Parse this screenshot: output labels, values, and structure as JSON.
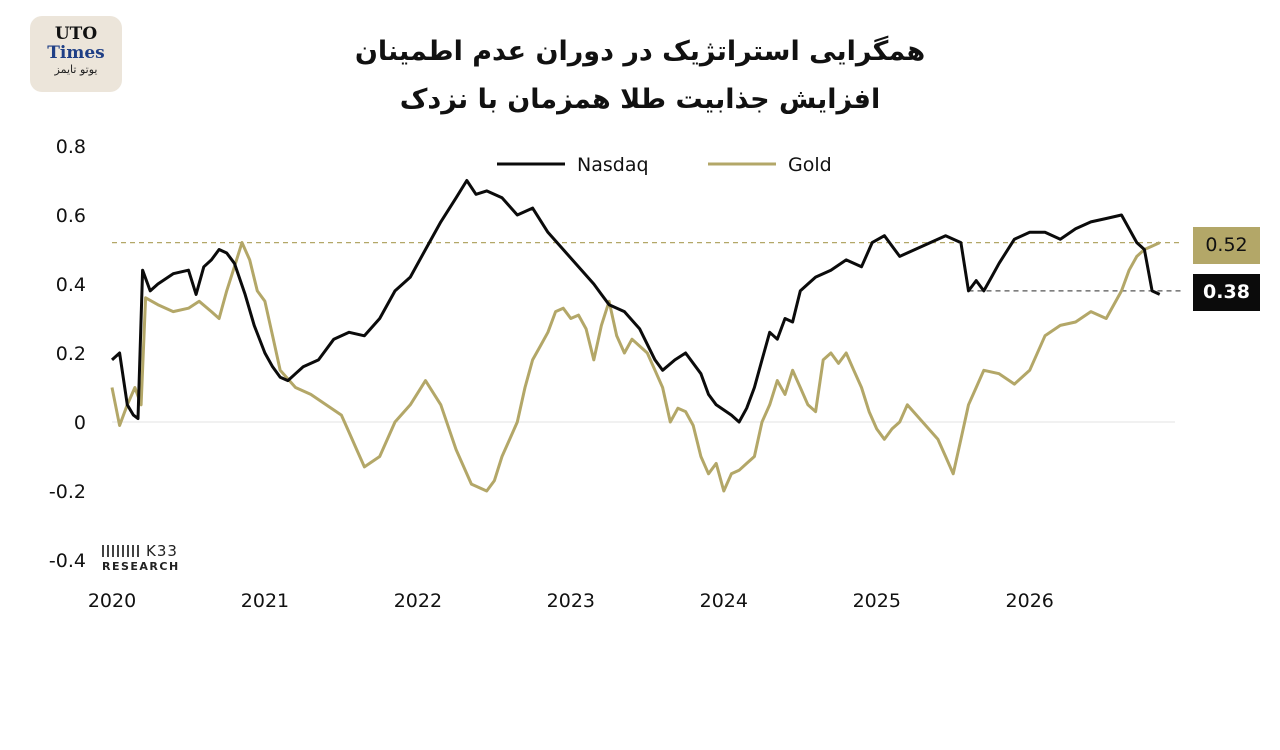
{
  "logo": {
    "line1": "UTO",
    "line2": "Times",
    "line3": "یوتو تایمز"
  },
  "title": {
    "line1": "همگرایی استراتژیک در دوران عدم اطمینان",
    "line2": "افزایش جذابیت طلا همزمان با نزدک"
  },
  "watermark": {
    "brand": "K33",
    "sub": "RESEARCH"
  },
  "colors": {
    "nasdaq": "#0b0b0b",
    "gold": "#b3a768",
    "badge_gold_bg": "#b3a768",
    "badge_nasdaq_bg": "#0b0b0b",
    "zero_line": "#e3e3e3"
  },
  "badges": {
    "gold": "0.52",
    "nasdaq": "0.38"
  },
  "chart_data": {
    "type": "line",
    "title": "همگرایی استراتژیک در دوران عدم اطمینان / افزایش جذابیت طلا همزمان با نزدک",
    "xlabel": "",
    "ylabel": "",
    "ylim": [
      -0.4,
      0.8
    ],
    "yticks": [
      0.8,
      0.6,
      0.4,
      0.2,
      0,
      -0.2,
      -0.4
    ],
    "ytick_labels": [
      "0.8",
      "0.6",
      "0.4",
      "0.2",
      "0",
      "-0.2",
      "-0.4"
    ],
    "xlim": [
      2020.0,
      2026.95
    ],
    "xticks": [
      2020,
      2021,
      2022,
      2023,
      2024,
      2025,
      2026
    ],
    "xtick_labels": [
      "2020",
      "2021",
      "2022",
      "2023",
      "2024",
      "2025",
      "2026"
    ],
    "grid": false,
    "legend": "top-center",
    "reference_lines": [
      {
        "series": "Gold",
        "y": 0.52,
        "style": "dashed",
        "label": "0.52"
      },
      {
        "series": "Nasdaq",
        "y": 0.38,
        "style": "dashed",
        "label": "0.38"
      }
    ],
    "series": [
      {
        "name": "Nasdaq",
        "x": [
          2020.0,
          2020.05,
          2020.1,
          2020.14,
          2020.17,
          2020.2,
          2020.25,
          2020.3,
          2020.4,
          2020.5,
          2020.55,
          2020.6,
          2020.65,
          2020.7,
          2020.75,
          2020.8,
          2020.87,
          2020.93,
          2021.0,
          2021.05,
          2021.1,
          2021.15,
          2021.2,
          2021.25,
          2021.35,
          2021.45,
          2021.55,
          2021.65,
          2021.75,
          2021.85,
          2021.95,
          2022.05,
          2022.15,
          2022.25,
          2022.32,
          2022.38,
          2022.45,
          2022.55,
          2022.65,
          2022.75,
          2022.85,
          2022.95,
          2023.05,
          2023.15,
          2023.2,
          2023.25,
          2023.35,
          2023.45,
          2023.55,
          2023.6,
          2023.68,
          2023.75,
          2023.85,
          2023.9,
          2023.95,
          2024.05,
          2024.1,
          2024.15,
          2024.2,
          2024.25,
          2024.3,
          2024.35,
          2024.4,
          2024.45,
          2024.5,
          2024.55,
          2024.6,
          2024.7,
          2024.8,
          2024.9,
          2024.97,
          2025.05,
          2025.15,
          2025.25,
          2025.35,
          2025.45,
          2025.55,
          2025.6,
          2025.65,
          2025.7,
          2025.75,
          2025.8,
          2025.9,
          2026.0,
          2026.1,
          2026.2,
          2026.3,
          2026.4,
          2026.5,
          2026.6,
          2026.7,
          2026.75,
          2026.8,
          2026.85
        ],
        "y": [
          0.18,
          0.2,
          0.05,
          0.02,
          0.01,
          0.44,
          0.38,
          0.4,
          0.43,
          0.44,
          0.37,
          0.45,
          0.47,
          0.5,
          0.49,
          0.46,
          0.37,
          0.28,
          0.2,
          0.16,
          0.13,
          0.12,
          0.14,
          0.16,
          0.18,
          0.24,
          0.26,
          0.25,
          0.3,
          0.38,
          0.42,
          0.5,
          0.58,
          0.65,
          0.7,
          0.66,
          0.67,
          0.65,
          0.6,
          0.62,
          0.55,
          0.5,
          0.45,
          0.4,
          0.37,
          0.34,
          0.32,
          0.27,
          0.18,
          0.15,
          0.18,
          0.2,
          0.14,
          0.08,
          0.05,
          0.02,
          0.0,
          0.04,
          0.1,
          0.18,
          0.26,
          0.24,
          0.3,
          0.29,
          0.38,
          0.4,
          0.42,
          0.44,
          0.47,
          0.45,
          0.52,
          0.54,
          0.48,
          0.5,
          0.52,
          0.54,
          0.52,
          0.38,
          0.41,
          0.38,
          0.42,
          0.46,
          0.53,
          0.55,
          0.55,
          0.53,
          0.56,
          0.58,
          0.59,
          0.6,
          0.52,
          0.5,
          0.38,
          0.37
        ]
      },
      {
        "name": "Gold",
        "x": [
          2020.0,
          2020.05,
          2020.1,
          2020.15,
          2020.19,
          2020.22,
          2020.3,
          2020.4,
          2020.5,
          2020.57,
          2020.65,
          2020.7,
          2020.75,
          2020.8,
          2020.85,
          2020.9,
          2020.95,
          2021.0,
          2021.05,
          2021.1,
          2021.2,
          2021.3,
          2021.4,
          2021.5,
          2021.55,
          2021.6,
          2021.65,
          2021.75,
          2021.85,
          2021.95,
          2022.05,
          2022.15,
          2022.25,
          2022.35,
          2022.45,
          2022.5,
          2022.55,
          2022.6,
          2022.65,
          2022.7,
          2022.75,
          2022.8,
          2022.85,
          2022.9,
          2022.95,
          2023.0,
          2023.05,
          2023.1,
          2023.15,
          2023.2,
          2023.25,
          2023.3,
          2023.35,
          2023.4,
          2023.45,
          2023.5,
          2023.55,
          2023.6,
          2023.65,
          2023.7,
          2023.75,
          2023.8,
          2023.85,
          2023.9,
          2023.95,
          2024.0,
          2024.05,
          2024.1,
          2024.15,
          2024.2,
          2024.25,
          2024.3,
          2024.35,
          2024.4,
          2024.45,
          2024.5,
          2024.55,
          2024.6,
          2024.65,
          2024.7,
          2024.75,
          2024.8,
          2024.85,
          2024.9,
          2024.95,
          2025.0,
          2025.05,
          2025.1,
          2025.15,
          2025.2,
          2025.3,
          2025.4,
          2025.45,
          2025.5,
          2025.55,
          2025.6,
          2025.65,
          2025.7,
          2025.8,
          2025.9,
          2026.0,
          2026.1,
          2026.2,
          2026.3,
          2026.4,
          2026.5,
          2026.6,
          2026.65,
          2026.7,
          2026.75,
          2026.8,
          2026.85
        ],
        "y": [
          0.1,
          -0.01,
          0.05,
          0.1,
          0.05,
          0.36,
          0.34,
          0.32,
          0.33,
          0.35,
          0.32,
          0.3,
          0.38,
          0.45,
          0.52,
          0.47,
          0.38,
          0.35,
          0.25,
          0.15,
          0.1,
          0.08,
          0.05,
          0.02,
          -0.03,
          -0.08,
          -0.13,
          -0.1,
          0.0,
          0.05,
          0.12,
          0.05,
          -0.08,
          -0.18,
          -0.2,
          -0.17,
          -0.1,
          -0.05,
          0.0,
          0.1,
          0.18,
          0.22,
          0.26,
          0.32,
          0.33,
          0.3,
          0.31,
          0.27,
          0.18,
          0.28,
          0.35,
          0.25,
          0.2,
          0.24,
          0.22,
          0.2,
          0.15,
          0.1,
          0.0,
          0.04,
          0.03,
          -0.01,
          -0.1,
          -0.15,
          -0.12,
          -0.2,
          -0.15,
          -0.14,
          -0.12,
          -0.1,
          0.0,
          0.05,
          0.12,
          0.08,
          0.15,
          0.1,
          0.05,
          0.03,
          0.18,
          0.2,
          0.17,
          0.2,
          0.15,
          0.1,
          0.03,
          -0.02,
          -0.05,
          -0.02,
          0.0,
          0.05,
          0.0,
          -0.05,
          -0.1,
          -0.15,
          -0.05,
          0.05,
          0.1,
          0.15,
          0.14,
          0.11,
          0.15,
          0.25,
          0.28,
          0.29,
          0.32,
          0.3,
          0.38,
          0.44,
          0.48,
          0.5,
          0.51,
          0.52
        ]
      }
    ]
  }
}
